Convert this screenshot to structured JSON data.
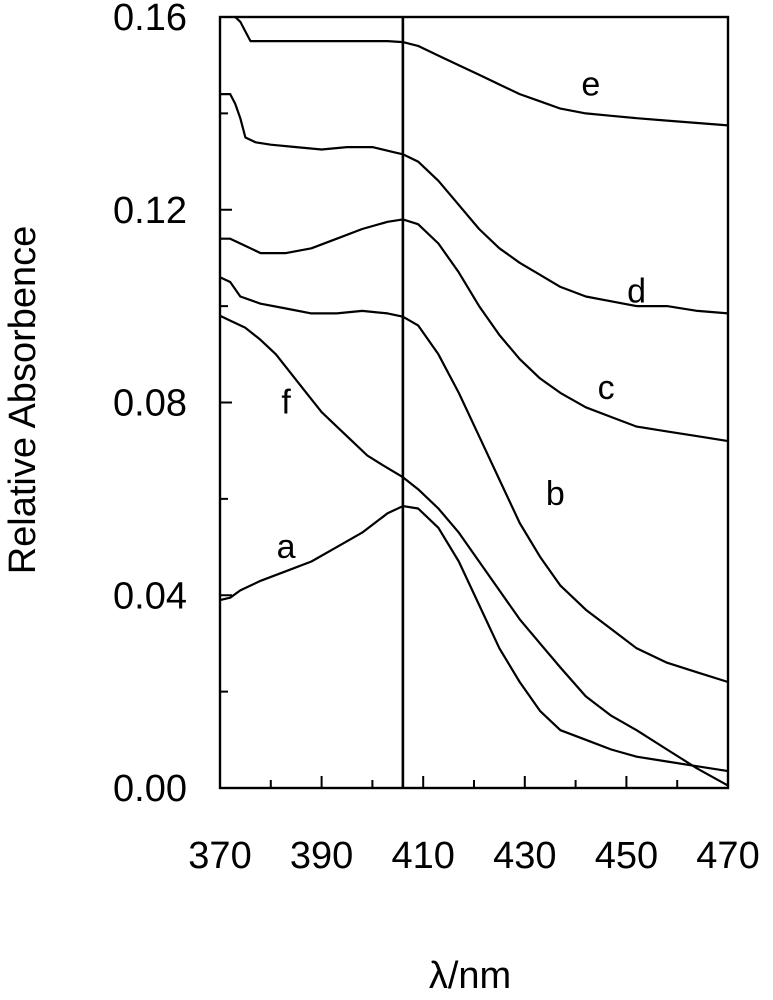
{
  "chart_data": {
    "type": "line",
    "xlabel": "λ/nm",
    "ylabel": "Relative Absorbence",
    "xlim": [
      370,
      470
    ],
    "ylim": [
      0.0,
      0.16
    ],
    "x_ticks": [
      "370",
      "390",
      "410",
      "430",
      "450",
      "470"
    ],
    "y_ticks": [
      "0.00",
      "0.04",
      "0.08",
      "0.12",
      "0.16"
    ],
    "x_tick_values": [
      370,
      390,
      410,
      430,
      450,
      470
    ],
    "y_tick_values": [
      0.0,
      0.04,
      0.08,
      0.12,
      0.16
    ],
    "vertical_line_x": 406,
    "grid": false,
    "series": [
      {
        "name": "a",
        "label_at": [
          383,
          0.05
        ],
        "points": [
          [
            370,
            0.039
          ],
          [
            372,
            0.0395
          ],
          [
            374,
            0.041
          ],
          [
            378,
            0.043
          ],
          [
            383,
            0.045
          ],
          [
            388,
            0.047
          ],
          [
            393,
            0.05
          ],
          [
            398,
            0.053
          ],
          [
            403,
            0.057
          ],
          [
            406,
            0.0585
          ],
          [
            409,
            0.058
          ],
          [
            413,
            0.054
          ],
          [
            417,
            0.047
          ],
          [
            421,
            0.038
          ],
          [
            425,
            0.029
          ],
          [
            429,
            0.022
          ],
          [
            433,
            0.016
          ],
          [
            437,
            0.012
          ],
          [
            442,
            0.01
          ],
          [
            447,
            0.008
          ],
          [
            452,
            0.0065
          ],
          [
            458,
            0.0055
          ],
          [
            464,
            0.0045
          ],
          [
            470,
            0.0035
          ]
        ]
      },
      {
        "name": "b",
        "label_at": [
          436,
          0.061
        ],
        "points": [
          [
            370,
            0.106
          ],
          [
            372,
            0.105
          ],
          [
            374,
            0.102
          ],
          [
            378,
            0.1005
          ],
          [
            383,
            0.0995
          ],
          [
            388,
            0.0985
          ],
          [
            393,
            0.0985
          ],
          [
            398,
            0.099
          ],
          [
            403,
            0.0985
          ],
          [
            406,
            0.0978
          ],
          [
            409,
            0.096
          ],
          [
            413,
            0.09
          ],
          [
            417,
            0.082
          ],
          [
            421,
            0.073
          ],
          [
            425,
            0.064
          ],
          [
            429,
            0.055
          ],
          [
            433,
            0.048
          ],
          [
            437,
            0.042
          ],
          [
            442,
            0.037
          ],
          [
            447,
            0.033
          ],
          [
            452,
            0.029
          ],
          [
            458,
            0.026
          ],
          [
            464,
            0.024
          ],
          [
            470,
            0.022
          ]
        ]
      },
      {
        "name": "c",
        "label_at": [
          446,
          0.083
        ],
        "points": [
          [
            370,
            0.114
          ],
          [
            372,
            0.114
          ],
          [
            374,
            0.113
          ],
          [
            378,
            0.111
          ],
          [
            383,
            0.111
          ],
          [
            388,
            0.112
          ],
          [
            393,
            0.114
          ],
          [
            398,
            0.116
          ],
          [
            403,
            0.1175
          ],
          [
            406,
            0.118
          ],
          [
            409,
            0.117
          ],
          [
            413,
            0.113
          ],
          [
            417,
            0.107
          ],
          [
            421,
            0.1
          ],
          [
            425,
            0.094
          ],
          [
            429,
            0.089
          ],
          [
            433,
            0.085
          ],
          [
            437,
            0.082
          ],
          [
            442,
            0.079
          ],
          [
            447,
            0.077
          ],
          [
            452,
            0.075
          ],
          [
            458,
            0.074
          ],
          [
            464,
            0.073
          ],
          [
            470,
            0.072
          ]
        ]
      },
      {
        "name": "d",
        "label_at": [
          452,
          0.103
        ],
        "points": [
          [
            370,
            0.144
          ],
          [
            372,
            0.144
          ],
          [
            373,
            0.142
          ],
          [
            374,
            0.139
          ],
          [
            375,
            0.135
          ],
          [
            377,
            0.134
          ],
          [
            380,
            0.1335
          ],
          [
            385,
            0.133
          ],
          [
            390,
            0.1325
          ],
          [
            395,
            0.133
          ],
          [
            400,
            0.133
          ],
          [
            404,
            0.132
          ],
          [
            406,
            0.1315
          ],
          [
            409,
            0.13
          ],
          [
            413,
            0.126
          ],
          [
            417,
            0.121
          ],
          [
            421,
            0.116
          ],
          [
            425,
            0.112
          ],
          [
            429,
            0.109
          ],
          [
            433,
            0.1065
          ],
          [
            437,
            0.104
          ],
          [
            442,
            0.102
          ],
          [
            447,
            0.101
          ],
          [
            452,
            0.1
          ],
          [
            458,
            0.1
          ],
          [
            464,
            0.099
          ],
          [
            470,
            0.0985
          ]
        ]
      },
      {
        "name": "e",
        "label_at": [
          443,
          0.146
        ],
        "points": [
          [
            373,
            0.16
          ],
          [
            374,
            0.159
          ],
          [
            375,
            0.157
          ],
          [
            376,
            0.155
          ],
          [
            378,
            0.155
          ],
          [
            383,
            0.155
          ],
          [
            388,
            0.155
          ],
          [
            393,
            0.155
          ],
          [
            398,
            0.155
          ],
          [
            403,
            0.155
          ],
          [
            406,
            0.1548
          ],
          [
            409,
            0.154
          ],
          [
            413,
            0.152
          ],
          [
            417,
            0.15
          ],
          [
            421,
            0.148
          ],
          [
            425,
            0.146
          ],
          [
            429,
            0.144
          ],
          [
            433,
            0.1425
          ],
          [
            437,
            0.141
          ],
          [
            442,
            0.14
          ],
          [
            447,
            0.1395
          ],
          [
            452,
            0.139
          ],
          [
            458,
            0.1385
          ],
          [
            464,
            0.138
          ],
          [
            470,
            0.1375
          ]
        ]
      },
      {
        "name": "f",
        "label_at": [
          383,
          0.08
        ],
        "points": [
          [
            370,
            0.098
          ],
          [
            372,
            0.097
          ],
          [
            375,
            0.0955
          ],
          [
            378,
            0.093
          ],
          [
            381,
            0.09
          ],
          [
            384,
            0.086
          ],
          [
            387,
            0.082
          ],
          [
            390,
            0.078
          ],
          [
            393,
            0.075
          ],
          [
            396,
            0.072
          ],
          [
            399,
            0.069
          ],
          [
            402,
            0.067
          ],
          [
            406,
            0.0645
          ],
          [
            409,
            0.062
          ],
          [
            413,
            0.058
          ],
          [
            417,
            0.053
          ],
          [
            421,
            0.047
          ],
          [
            425,
            0.041
          ],
          [
            429,
            0.035
          ],
          [
            433,
            0.03
          ],
          [
            437,
            0.025
          ],
          [
            442,
            0.019
          ],
          [
            447,
            0.015
          ],
          [
            452,
            0.012
          ],
          [
            458,
            0.008
          ],
          [
            464,
            0.004
          ],
          [
            470,
            0.0005
          ]
        ]
      }
    ]
  }
}
